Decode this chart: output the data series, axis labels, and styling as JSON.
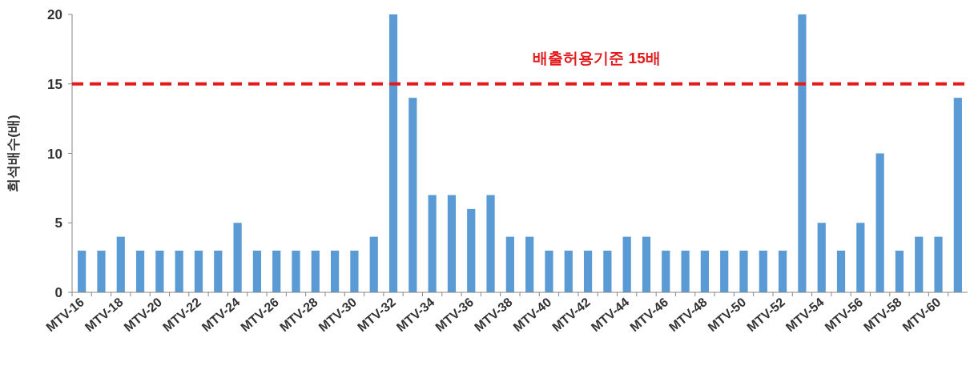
{
  "chart_data": {
    "type": "bar",
    "ylabel": "희석배수(배)",
    "categories": [
      "MTV-16",
      null,
      "MTV-18",
      null,
      "MTV-20",
      null,
      "MTV-22",
      null,
      "MTV-24",
      null,
      "MTV-26",
      null,
      "MTV-28",
      null,
      "MTV-30",
      null,
      "MTV-32",
      null,
      "MTV-34",
      null,
      "MTV-36",
      null,
      "MTV-38",
      null,
      "MTV-40",
      null,
      "MTV-42",
      null,
      "MTV-44",
      null,
      "MTV-46",
      null,
      "MTV-48",
      null,
      "MTV-50",
      null,
      "MTV-52",
      null,
      "MTV-54",
      null,
      "MTV-56",
      null,
      "MTV-58",
      null,
      "MTV-60",
      null
    ],
    "series": [
      {
        "color": "#5b9bd5",
        "values": [
          3,
          3,
          4,
          3,
          3,
          3,
          3,
          3,
          5,
          3,
          3,
          3,
          3,
          3,
          3,
          4,
          20,
          14,
          7,
          7,
          6,
          7,
          4,
          4,
          3,
          3,
          3,
          3,
          4,
          4,
          3,
          3,
          3,
          3,
          3,
          3,
          3,
          20,
          5,
          3,
          5,
          10,
          3,
          4,
          4,
          14
        ]
      }
    ],
    "ylim": [
      0,
      20
    ],
    "yticks": [
      0,
      5,
      10,
      15,
      20
    ],
    "grid": false,
    "ref_lines": [
      {
        "axis": "y",
        "value": 15,
        "label": "배출허용기준 15배",
        "color": "#e31a1c",
        "line_style": "dashed"
      }
    ]
  }
}
